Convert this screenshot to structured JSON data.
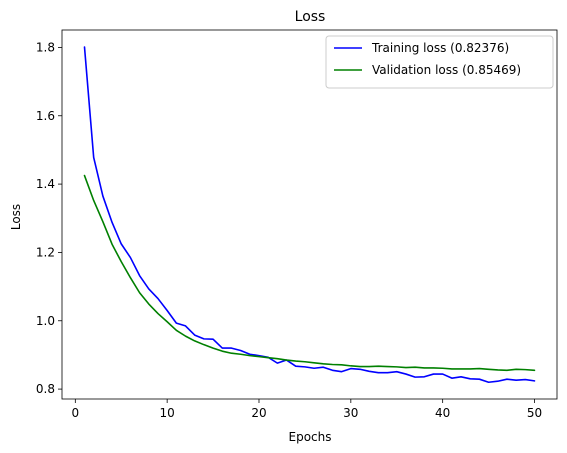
{
  "chart_data": {
    "type": "line",
    "title": "Loss",
    "xlabel": "Epochs",
    "ylabel": "Loss",
    "xlim": [
      -1.45,
      52.45
    ],
    "ylim": [
      0.771,
      1.851
    ],
    "xticks": [
      0,
      10,
      20,
      30,
      40,
      50
    ],
    "yticks": [
      0.8,
      1.0,
      1.2,
      1.4,
      1.6,
      1.8
    ],
    "ytick_labels": [
      "0.8",
      "1.0",
      "1.2",
      "1.4",
      "1.6",
      "1.8"
    ],
    "legend_position": "top-right",
    "x": [
      1,
      2,
      3,
      4,
      5,
      6,
      7,
      8,
      9,
      10,
      11,
      12,
      13,
      14,
      15,
      16,
      17,
      18,
      19,
      20,
      21,
      22,
      23,
      24,
      25,
      26,
      27,
      28,
      29,
      30,
      31,
      32,
      33,
      34,
      35,
      36,
      37,
      38,
      39,
      40,
      41,
      42,
      43,
      44,
      45,
      46,
      47,
      48,
      49,
      50
    ],
    "series": [
      {
        "name": "Training loss (0.82376)",
        "color": "#0000ff",
        "values": [
          1.801,
          1.478,
          1.365,
          1.288,
          1.225,
          1.185,
          1.132,
          1.093,
          1.065,
          1.03,
          0.993,
          0.985,
          0.958,
          0.947,
          0.946,
          0.92,
          0.92,
          0.913,
          0.902,
          0.898,
          0.893,
          0.876,
          0.885,
          0.867,
          0.865,
          0.861,
          0.864,
          0.855,
          0.851,
          0.86,
          0.858,
          0.852,
          0.848,
          0.848,
          0.851,
          0.844,
          0.835,
          0.836,
          0.844,
          0.844,
          0.832,
          0.836,
          0.83,
          0.829,
          0.82,
          0.823,
          0.829,
          0.826,
          0.828,
          0.824
        ]
      },
      {
        "name": "Validation loss (0.85469)",
        "color": "#008000",
        "values": [
          1.425,
          1.352,
          1.29,
          1.224,
          1.173,
          1.126,
          1.082,
          1.049,
          1.021,
          0.997,
          0.972,
          0.955,
          0.941,
          0.93,
          0.92,
          0.911,
          0.905,
          0.902,
          0.898,
          0.895,
          0.892,
          0.889,
          0.885,
          0.882,
          0.88,
          0.877,
          0.874,
          0.872,
          0.871,
          0.868,
          0.866,
          0.866,
          0.867,
          0.866,
          0.865,
          0.863,
          0.864,
          0.862,
          0.862,
          0.861,
          0.859,
          0.859,
          0.859,
          0.86,
          0.858,
          0.856,
          0.855,
          0.858,
          0.857,
          0.855
        ]
      }
    ]
  }
}
